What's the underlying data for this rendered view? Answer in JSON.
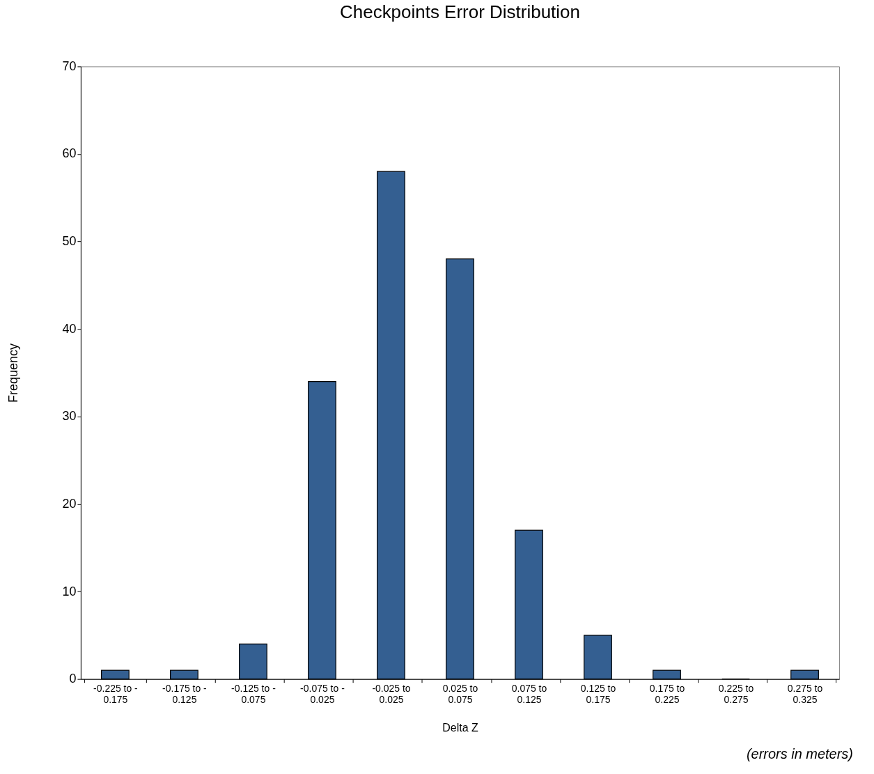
{
  "chart_data": {
    "type": "bar",
    "title": "Checkpoints Error Distribution",
    "xlabel": "Delta Z",
    "ylabel": "Frequency",
    "categories": [
      "-0.225 to -\n0.175",
      "-0.175 to -\n0.125",
      "-0.125 to -\n0.075",
      "-0.075 to -\n0.025",
      "-0.025 to\n0.025",
      "0.025 to\n0.075",
      "0.075 to\n0.125",
      "0.125 to\n0.175",
      "0.175 to\n0.225",
      "0.225 to\n0.275",
      "0.275 to\n0.325"
    ],
    "values": [
      1,
      1,
      4,
      34,
      58,
      48,
      17,
      5,
      1,
      0,
      1
    ],
    "color": "#345f91",
    "ylim": [
      0,
      70
    ],
    "yticks": [
      0,
      10,
      20,
      30,
      40,
      50,
      60,
      70
    ],
    "grid": false,
    "annotations": [
      "(errors in meters)"
    ]
  }
}
